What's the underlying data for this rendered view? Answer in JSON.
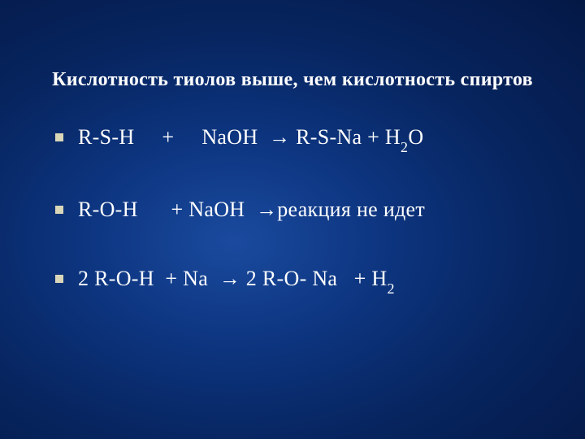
{
  "slide": {
    "background_gradient": {
      "center_color": "#1a4a9e",
      "outer_color": "#041845"
    },
    "title": {
      "text": "Кислотность тиолов выше, чем кислотность спиртов",
      "color": "#ffffff",
      "fontsize": 24,
      "font_weight": "bold"
    },
    "bullets": [
      {
        "parts": [
          {
            "t": "R-S-H     +     NaOH  → R-S-Na + H",
            "sub": false
          },
          {
            "t": "2",
            "sub": true
          },
          {
            "t": "O",
            "sub": false
          }
        ]
      },
      {
        "parts": [
          {
            "t": "R-O-H      + NaOH  →реакция не идет",
            "sub": false
          }
        ]
      },
      {
        "parts": [
          {
            "t": "2 R-O-H  + Na  → 2 R-O- Na   + H",
            "sub": false
          },
          {
            "t": "2",
            "sub": true
          }
        ]
      }
    ],
    "bullet_style": {
      "marker_color": "#d9d7b8",
      "marker_size": 10,
      "text_color": "#ffffff",
      "fontsize": 26
    }
  }
}
